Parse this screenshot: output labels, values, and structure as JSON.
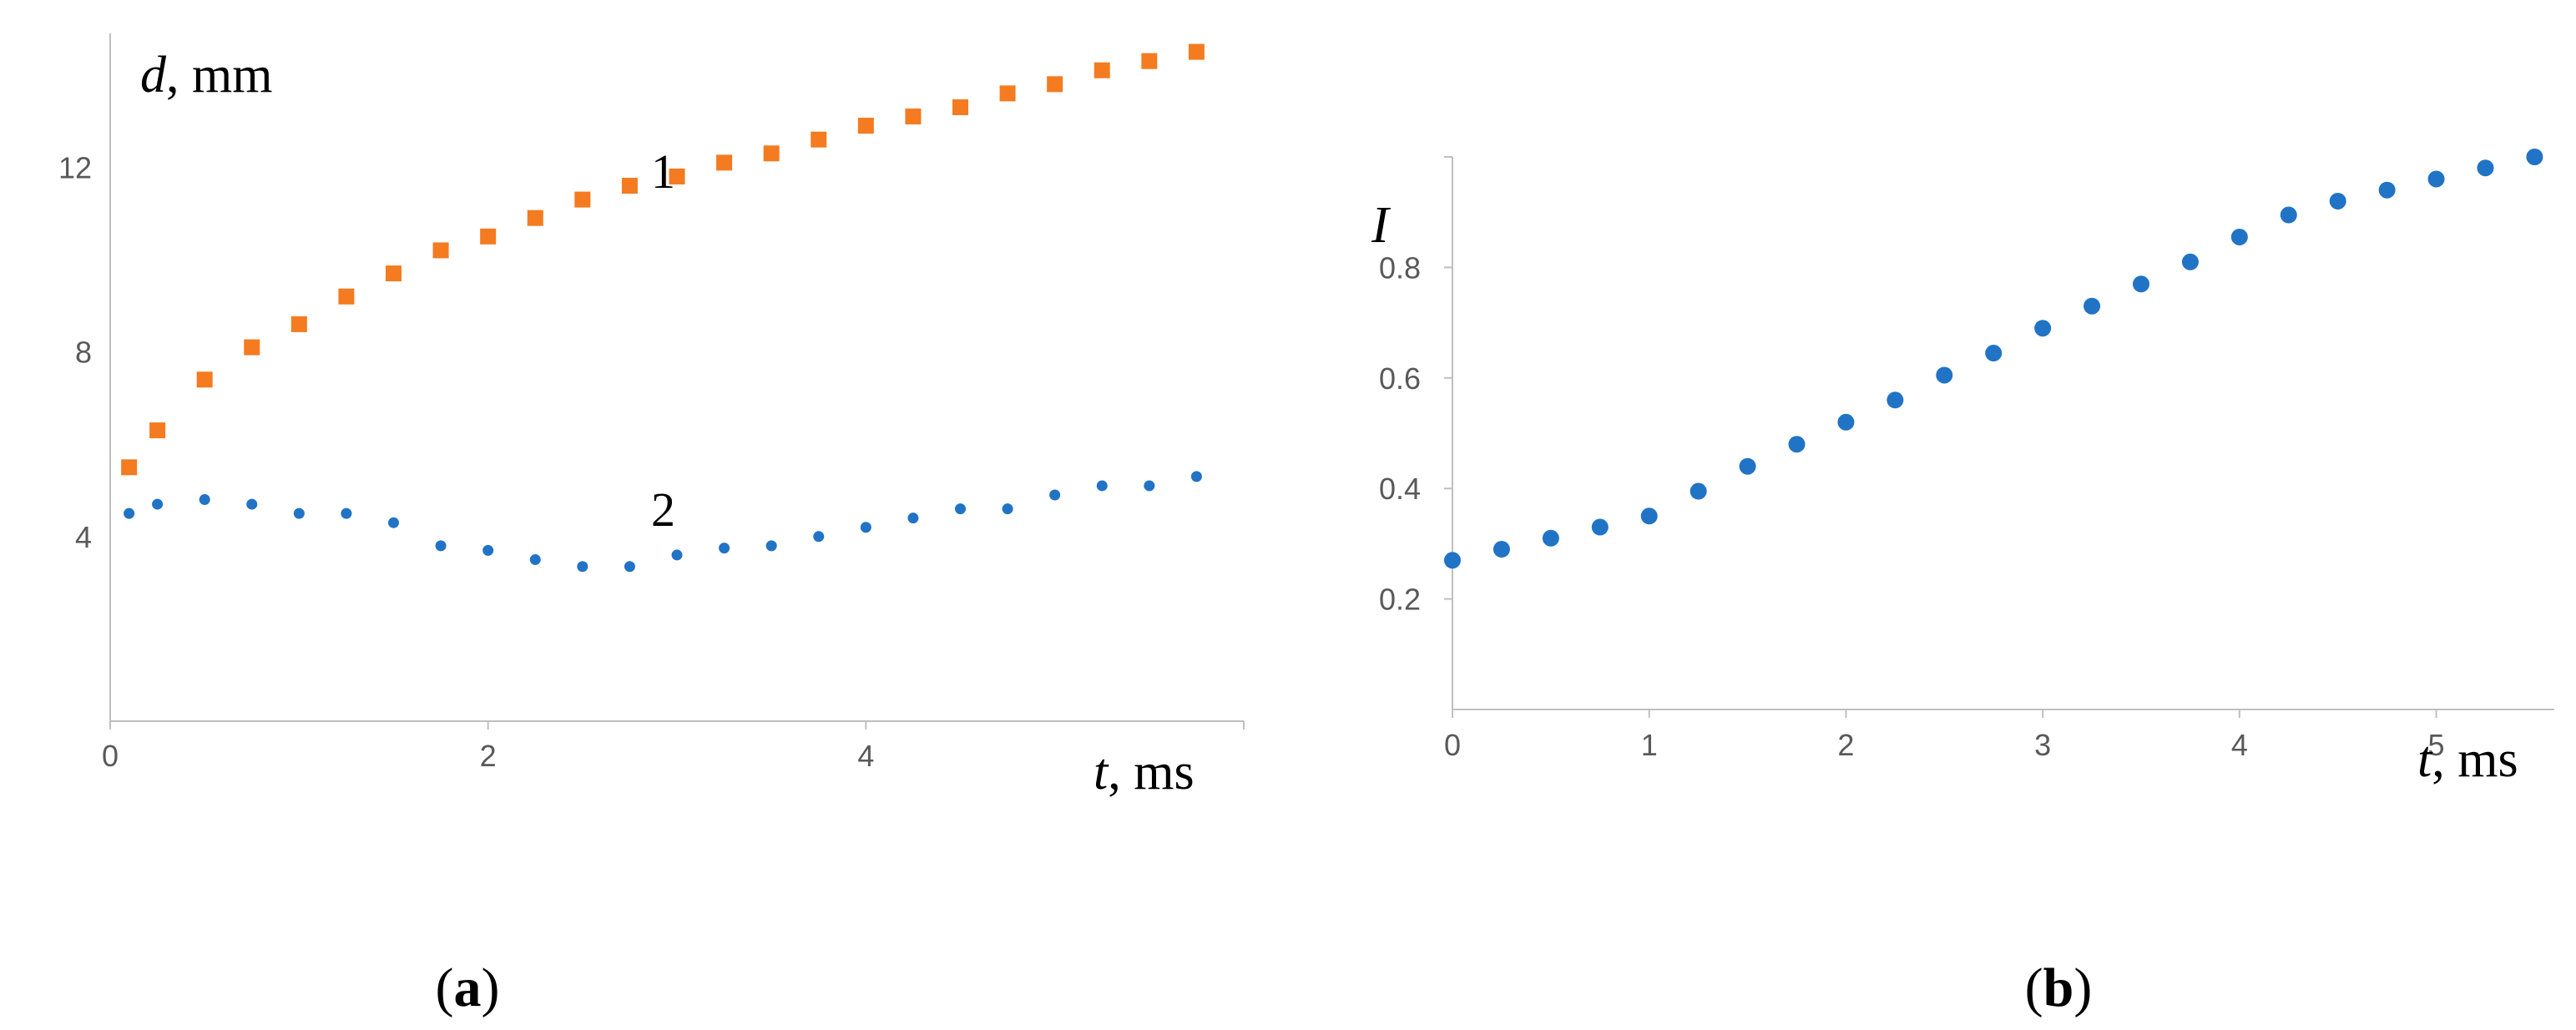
{
  "colors": {
    "series1": "#F47B20",
    "series2": "#2173C5",
    "axis": "#BFBFBF",
    "tick_text": "#595959"
  },
  "chart_data": [
    {
      "type": "scatter",
      "panel_label": "a",
      "ylabel_symbol": "d",
      "ylabel_unit": ", mm",
      "xlabel_symbol": "t",
      "xlabel_unit": ", ms",
      "xlim": [
        0,
        6.0
      ],
      "ylim": [
        0,
        14.9
      ],
      "x_ticks": [
        0,
        2,
        4
      ],
      "y_ticks": [
        4,
        8,
        12
      ],
      "x_tick_labels": [
        "0",
        "2",
        "4"
      ],
      "y_tick_labels": [
        "4",
        "8",
        "12"
      ],
      "series": [
        {
          "name": "1",
          "marker": "square",
          "color": "#F47B20",
          "x": [
            0.1,
            0.25,
            0.5,
            0.75,
            1.0,
            1.25,
            1.5,
            1.75,
            2.0,
            2.25,
            2.5,
            2.75,
            3.0,
            3.25,
            3.5,
            3.75,
            4.0,
            4.25,
            4.5,
            4.75,
            5.0,
            5.25,
            5.5,
            5.75
          ],
          "y": [
            5.5,
            6.3,
            7.4,
            8.1,
            8.6,
            9.2,
            9.7,
            10.2,
            10.5,
            10.9,
            11.3,
            11.6,
            11.8,
            12.1,
            12.3,
            12.6,
            12.9,
            13.1,
            13.3,
            13.6,
            13.8,
            14.1,
            14.3,
            14.5
          ]
        },
        {
          "name": "2",
          "marker": "circle",
          "color": "#2173C5",
          "x": [
            0.1,
            0.25,
            0.5,
            0.75,
            1.0,
            1.25,
            1.5,
            1.75,
            2.0,
            2.25,
            2.5,
            2.75,
            3.0,
            3.25,
            3.5,
            3.75,
            4.0,
            4.25,
            4.5,
            4.75,
            5.0,
            5.25,
            5.5,
            5.75
          ],
          "y": [
            4.5,
            4.7,
            4.8,
            4.7,
            4.5,
            4.5,
            4.3,
            3.8,
            3.7,
            3.5,
            3.35,
            3.35,
            3.6,
            3.75,
            3.8,
            4.0,
            4.2,
            4.4,
            4.6,
            4.6,
            4.9,
            5.1,
            5.1,
            5.3
          ]
        }
      ]
    },
    {
      "type": "scatter",
      "panel_label": "b",
      "ylabel_symbol": "I",
      "ylabel_unit": "",
      "xlabel_symbol": "t",
      "xlabel_unit": ", ms",
      "xlim": [
        0,
        5.6
      ],
      "ylim": [
        0,
        1.0
      ],
      "x_ticks": [
        0,
        1,
        2,
        3,
        4,
        5
      ],
      "y_ticks": [
        0.2,
        0.4,
        0.6,
        0.8
      ],
      "x_tick_labels": [
        "0",
        "1",
        "2",
        "3",
        "4",
        "5"
      ],
      "y_tick_labels": [
        "0.2",
        "0.4",
        "0.6",
        "0.8"
      ],
      "series": [
        {
          "marker": "circle",
          "color": "#2173C5",
          "x": [
            0,
            0.25,
            0.5,
            0.75,
            1.0,
            1.25,
            1.5,
            1.75,
            2.0,
            2.25,
            2.5,
            2.75,
            3.0,
            3.25,
            3.5,
            3.75,
            4.0,
            4.25,
            4.5,
            4.75,
            5.0,
            5.25,
            5.5
          ],
          "y": [
            0.27,
            0.29,
            0.31,
            0.33,
            0.35,
            0.395,
            0.44,
            0.48,
            0.52,
            0.56,
            0.605,
            0.645,
            0.69,
            0.73,
            0.77,
            0.81,
            0.855,
            0.895,
            0.92,
            0.94,
            0.96,
            0.98,
            1.0
          ]
        }
      ]
    }
  ]
}
